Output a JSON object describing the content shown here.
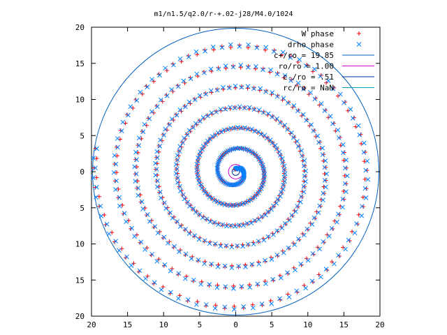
{
  "chart_data": {
    "type": "scatter",
    "title": "m1/n1.5/q2.0/r-+.02-j28/M4.0/1024",
    "xlabel": "",
    "ylabel": "",
    "xlim": [
      -20,
      20
    ],
    "ylim": [
      -20,
      20
    ],
    "xticks": [
      "20",
      "15",
      "10",
      "5",
      "0",
      "5",
      "10",
      "15",
      "20"
    ],
    "yticks": [
      "20",
      "15",
      "10",
      "5",
      "0",
      "5",
      "10",
      "15",
      "20"
    ],
    "grid": false,
    "legend_position": "top-right",
    "colors": {
      "w_phase": "#ff0000",
      "drho_phase": "#0080ff",
      "c_plus": "#0060c0",
      "ro": "#cc00cc",
      "c_minus": "#0030a0",
      "rc": "#00a0c0"
    },
    "series": [
      {
        "name": "W phase",
        "marker": "+",
        "shape": "spiral",
        "r_start": 0.3,
        "r_end": 19.4,
        "turns": 6.8
      },
      {
        "name": "drho phase",
        "marker": "x",
        "shape": "spiral",
        "r_start": 0.3,
        "r_end": 19.85,
        "turns": 6.8
      }
    ],
    "circles": [
      {
        "name": "c+/ro = 19.85",
        "r": 19.85
      },
      {
        "name": "ro/ro = 1.00",
        "r": 1.0
      },
      {
        "name": "c-/ro = .51",
        "r": 0.51
      },
      {
        "name": "rc/ro = NaN",
        "r": null
      }
    ]
  }
}
